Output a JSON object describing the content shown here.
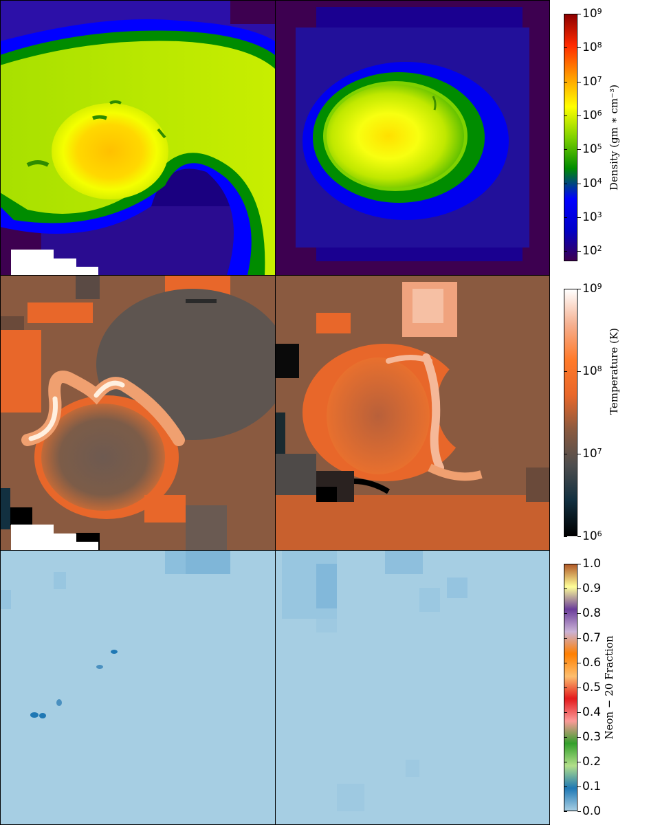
{
  "chart_data": [
    {
      "type": "heatmap",
      "field": "density",
      "colorbar": {
        "label": "Density (gm * cm^-3)",
        "label_text": "Density (gm ∗ cm⁻³)",
        "scale": "log",
        "range": [
          50,
          1000000000
        ],
        "ticks": [
          {
            "base": "10",
            "exp": "2",
            "value": 100
          },
          {
            "base": "10",
            "exp": "3",
            "value": 1000
          },
          {
            "base": "10",
            "exp": "4",
            "value": 10000
          },
          {
            "base": "10",
            "exp": "5",
            "value": 100000
          },
          {
            "base": "10",
            "exp": "6",
            "value": 1000000
          },
          {
            "base": "10",
            "exp": "7",
            "value": 10000000
          },
          {
            "base": "10",
            "exp": "8",
            "value": 100000000
          },
          {
            "base": "10",
            "exp": "9",
            "value": 1000000000
          }
        ],
        "colors": [
          "#3d0050",
          "#0000c8",
          "#0000ff",
          "#008c00",
          "#7fd200",
          "#ffff00",
          "#ff9900",
          "#ff2a00",
          "#8c0000"
        ]
      },
      "panels": [
        "left",
        "right"
      ]
    },
    {
      "type": "heatmap",
      "field": "temperature",
      "colorbar": {
        "label": "Temperature (K)",
        "label_text": "Temperature (K)",
        "scale": "log",
        "range": [
          1000000,
          1000000000
        ],
        "ticks": [
          {
            "base": "10",
            "exp": "6",
            "value": 1000000
          },
          {
            "base": "10",
            "exp": "7",
            "value": 10000000
          },
          {
            "base": "10",
            "exp": "8",
            "value": 100000000
          },
          {
            "base": "10",
            "exp": "9",
            "value": 1000000000
          }
        ],
        "colors": [
          "#000000",
          "#123040",
          "#4e4e4e",
          "#8a5a40",
          "#e8672a",
          "#ff7a2a",
          "#f5b090",
          "#ffffff"
        ]
      },
      "panels": [
        "left",
        "right"
      ]
    },
    {
      "type": "heatmap",
      "field": "neon20_fraction",
      "colorbar": {
        "label": "Neon − 20 Fraction",
        "label_text": "Neon − 20 Fraction",
        "scale": "linear",
        "range": [
          0.0,
          1.0
        ],
        "ticks": [
          "0.0",
          "0.1",
          "0.2",
          "0.3",
          "0.4",
          "0.5",
          "0.6",
          "0.7",
          "0.8",
          "0.9",
          "1.0"
        ],
        "colors": [
          "#a6cee3",
          "#1f78b4",
          "#b2df8a",
          "#33a02c",
          "#fb9a99",
          "#e31a1c",
          "#fdbf6f",
          "#ff7f00",
          "#cab2d6",
          "#6a3d9a",
          "#ffff99",
          "#b15928"
        ]
      },
      "panels": [
        "left",
        "right"
      ]
    }
  ]
}
